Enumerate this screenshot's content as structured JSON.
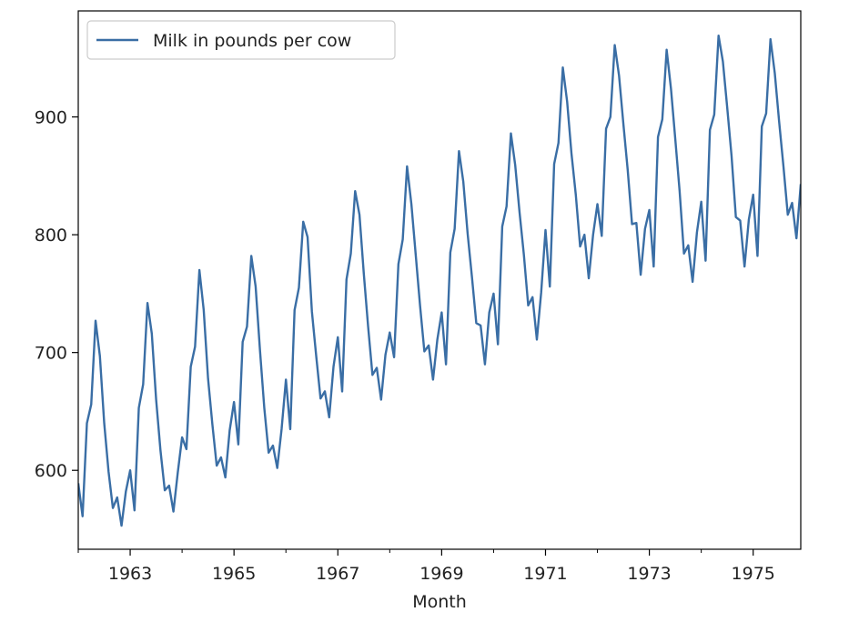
{
  "chart_data": {
    "type": "line",
    "title": "",
    "xlabel": "Month",
    "ylabel": "",
    "x_range": [
      "1962-01",
      "1975-12"
    ],
    "ylim": [
      533,
      990
    ],
    "x_ticks": [
      {
        "date": "1963-01",
        "label": "1963"
      },
      {
        "date": "1965-01",
        "label": "1965"
      },
      {
        "date": "1967-01",
        "label": "1967"
      },
      {
        "date": "1969-01",
        "label": "1969"
      },
      {
        "date": "1971-01",
        "label": "1971"
      },
      {
        "date": "1973-01",
        "label": "1973"
      },
      {
        "date": "1975-01",
        "label": "1975"
      }
    ],
    "y_ticks": [
      600,
      700,
      800,
      900
    ],
    "grid": false,
    "legend": {
      "position": "top-left",
      "entries": [
        "Milk in pounds per cow"
      ]
    },
    "series": [
      {
        "name": "Milk in pounds per cow",
        "color": "#3a6ea5",
        "x": [
          "1962-01",
          "1962-02",
          "1962-03",
          "1962-04",
          "1962-05",
          "1962-06",
          "1962-07",
          "1962-08",
          "1962-09",
          "1962-10",
          "1962-11",
          "1962-12",
          "1963-01",
          "1963-02",
          "1963-03",
          "1963-04",
          "1963-05",
          "1963-06",
          "1963-07",
          "1963-08",
          "1963-09",
          "1963-10",
          "1963-11",
          "1963-12",
          "1964-01",
          "1964-02",
          "1964-03",
          "1964-04",
          "1964-05",
          "1964-06",
          "1964-07",
          "1964-08",
          "1964-09",
          "1964-10",
          "1964-11",
          "1964-12",
          "1965-01",
          "1965-02",
          "1965-03",
          "1965-04",
          "1965-05",
          "1965-06",
          "1965-07",
          "1965-08",
          "1965-09",
          "1965-10",
          "1965-11",
          "1965-12",
          "1966-01",
          "1966-02",
          "1966-03",
          "1966-04",
          "1966-05",
          "1966-06",
          "1966-07",
          "1966-08",
          "1966-09",
          "1966-10",
          "1966-11",
          "1966-12",
          "1967-01",
          "1967-02",
          "1967-03",
          "1967-04",
          "1967-05",
          "1967-06",
          "1967-07",
          "1967-08",
          "1967-09",
          "1967-10",
          "1967-11",
          "1967-12",
          "1968-01",
          "1968-02",
          "1968-03",
          "1968-04",
          "1968-05",
          "1968-06",
          "1968-07",
          "1968-08",
          "1968-09",
          "1968-10",
          "1968-11",
          "1968-12",
          "1969-01",
          "1969-02",
          "1969-03",
          "1969-04",
          "1969-05",
          "1969-06",
          "1969-07",
          "1969-08",
          "1969-09",
          "1969-10",
          "1969-11",
          "1969-12",
          "1970-01",
          "1970-02",
          "1970-03",
          "1970-04",
          "1970-05",
          "1970-06",
          "1970-07",
          "1970-08",
          "1970-09",
          "1970-10",
          "1970-11",
          "1970-12",
          "1971-01",
          "1971-02",
          "1971-03",
          "1971-04",
          "1971-05",
          "1971-06",
          "1971-07",
          "1971-08",
          "1971-09",
          "1971-10",
          "1971-11",
          "1971-12",
          "1972-01",
          "1972-02",
          "1972-03",
          "1972-04",
          "1972-05",
          "1972-06",
          "1972-07",
          "1972-08",
          "1972-09",
          "1972-10",
          "1972-11",
          "1972-12",
          "1973-01",
          "1973-02",
          "1973-03",
          "1973-04",
          "1973-05",
          "1973-06",
          "1973-07",
          "1973-08",
          "1973-09",
          "1973-10",
          "1973-11",
          "1973-12",
          "1974-01",
          "1974-02",
          "1974-03",
          "1974-04",
          "1974-05",
          "1974-06",
          "1974-07",
          "1974-08",
          "1974-09",
          "1974-10",
          "1974-11",
          "1974-12",
          "1975-01",
          "1975-02",
          "1975-03",
          "1975-04",
          "1975-05",
          "1975-06",
          "1975-07",
          "1975-08",
          "1975-09",
          "1975-10",
          "1975-11",
          "1975-12"
        ],
        "values": [
          589,
          561,
          640,
          656,
          727,
          697,
          640,
          599,
          568,
          577,
          553,
          582,
          600,
          566,
          653,
          673,
          742,
          716,
          660,
          617,
          583,
          587,
          565,
          598,
          628,
          618,
          688,
          705,
          770,
          736,
          678,
          639,
          604,
          611,
          594,
          634,
          658,
          622,
          709,
          722,
          782,
          756,
          702,
          653,
          615,
          621,
          602,
          635,
          677,
          635,
          736,
          755,
          811,
          798,
          735,
          697,
          661,
          667,
          645,
          688,
          713,
          667,
          762,
          784,
          837,
          817,
          767,
          722,
          681,
          687,
          660,
          698,
          717,
          696,
          775,
          796,
          858,
          826,
          783,
          740,
          701,
          706,
          677,
          711,
          734,
          690,
          785,
          805,
          871,
          845,
          801,
          764,
          725,
          723,
          690,
          734,
          750,
          707,
          807,
          824,
          886,
          859,
          819,
          783,
          740,
          747,
          711,
          751,
          804,
          756,
          860,
          878,
          942,
          913,
          869,
          834,
          790,
          800,
          763,
          800,
          826,
          799,
          890,
          900,
          961,
          935,
          894,
          855,
          809,
          810,
          766,
          805,
          821,
          773,
          883,
          898,
          957,
          924,
          881,
          837,
          784,
          791,
          760,
          802,
          828,
          778,
          889,
          902,
          969,
          947,
          908,
          867,
          815,
          812,
          773,
          813,
          834,
          782,
          892,
          903,
          966,
          937,
          896,
          858,
          817,
          827,
          797,
          843
        ]
      }
    ]
  }
}
